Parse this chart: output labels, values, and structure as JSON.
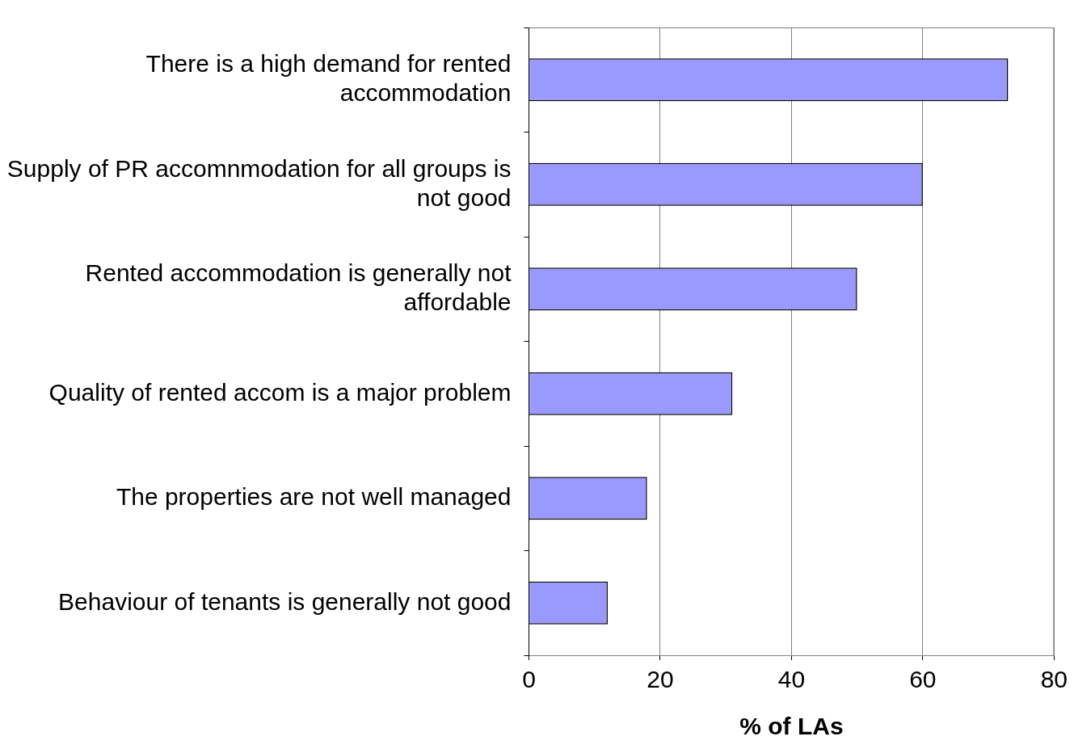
{
  "chart_data": {
    "type": "bar",
    "orientation": "horizontal",
    "xlabel": "% of LAs",
    "categories": [
      "There is a high demand for rented accommodation",
      "Supply of PR accomnmodation for all groups is not good",
      "Rented accommodation is generally not affordable",
      "Quality of rented accom is a major problem",
      "The properties are not well managed",
      "Behaviour of tenants is generally not good"
    ],
    "values": [
      73,
      60,
      50,
      31,
      18,
      12
    ],
    "color": "#9999ff",
    "xlim": [
      0,
      80
    ],
    "xticks": [
      0,
      20,
      40,
      60,
      80
    ],
    "grid": "x",
    "legend": false
  }
}
